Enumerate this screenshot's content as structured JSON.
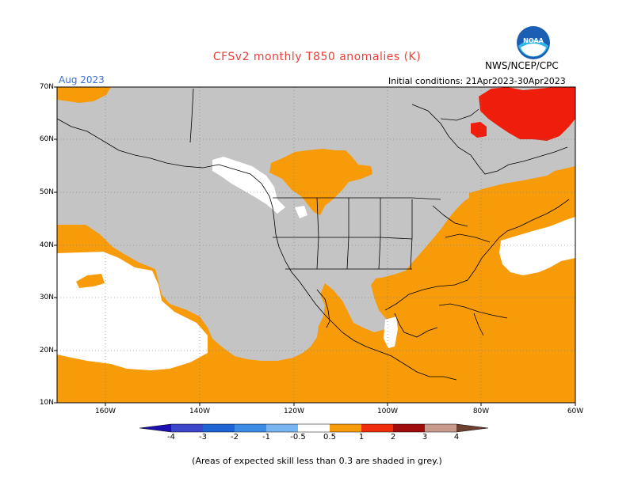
{
  "header": {
    "title": "CFSv2 monthly T850 anomalies (K)",
    "org": "NWS/NCEP/CPC",
    "logo_text": "NOAA",
    "month": "Aug 2023",
    "initial_conditions": "Initial conditions: 21Apr2023-30Apr2023"
  },
  "map": {
    "lat_labels": [
      "70N",
      "60N",
      "50N",
      "40N",
      "30N",
      "20N",
      "10N"
    ],
    "lon_labels": [
      "160W",
      "140W",
      "120W",
      "100W",
      "80W",
      "60W"
    ],
    "colors": {
      "grey_low_skill": "#c4c4c4",
      "orange_0_5_to_1": "#f89b08",
      "red_1_to_2": "#ef1e0c",
      "white_near_zero": "#ffffff",
      "coast": "#000000"
    }
  },
  "colorbar": {
    "labels": [
      "-4",
      "-3",
      "-2",
      "-1",
      "-0.5",
      "0.5",
      "1",
      "2",
      "3",
      "4"
    ],
    "colors": [
      "#1e0fb2",
      "#3c46c8",
      "#1e64d2",
      "#3c8ce6",
      "#78b4f0",
      "#ffffff",
      "#f89b08",
      "#ef2d0c",
      "#a00c0c",
      "#c89a8c",
      "#6e4032"
    ]
  },
  "footnote": "(Areas of expected skill less than 0.3 are shaded in grey.)"
}
